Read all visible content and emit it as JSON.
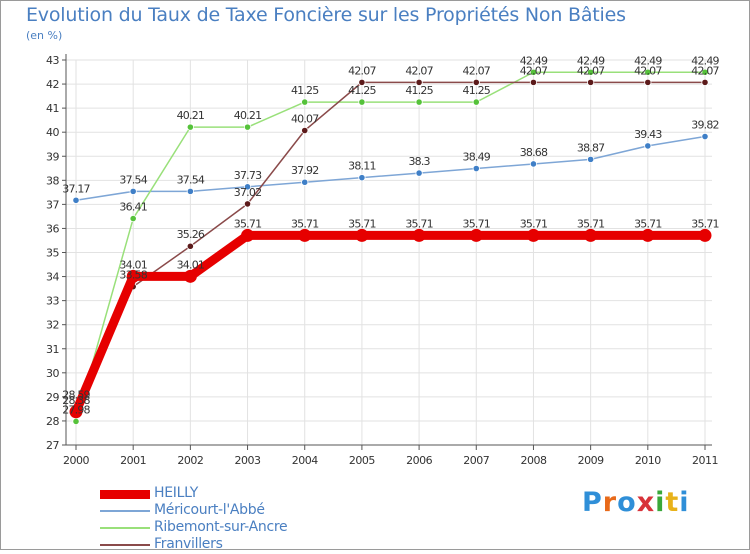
{
  "title": "Evolution du Taux de Taxe Foncière sur les Propriétés Non Bâties",
  "unit": "(en %)",
  "brand": "Proxiti",
  "brand_colors": [
    "#2f8fd8",
    "#e86a1a",
    "#2f8fd8",
    "#d8333a",
    "#3aa83a",
    "#e8b21a",
    "#2f8fd8"
  ],
  "chart_data": {
    "type": "line",
    "title": "Evolution du Taux de Taxe Foncière sur les Propriétés Non Bâties",
    "ylabel": "(en %)",
    "xlabel": "",
    "categories": [
      "2000",
      "2001",
      "2002",
      "2003",
      "2004",
      "2005",
      "2006",
      "2007",
      "2008",
      "2009",
      "2010",
      "2011"
    ],
    "ylim": [
      27,
      43
    ],
    "yticks": [
      27,
      28,
      29,
      30,
      31,
      32,
      33,
      34,
      35,
      36,
      37,
      38,
      39,
      40,
      41,
      42,
      43
    ],
    "grid": true,
    "legend_position": "bottom-left",
    "series": [
      {
        "name": "HEILLY",
        "color": "#e60000",
        "marker": "#e60000",
        "width": 9,
        "values": [
          28.38,
          34.01,
          34.01,
          35.71,
          35.71,
          35.71,
          35.71,
          35.71,
          35.71,
          35.71,
          35.71,
          35.71
        ],
        "labels": [
          "28.38",
          "34.01",
          "34.01",
          "35.71",
          "35.71",
          "35.71",
          "35.71",
          "35.71",
          "35.71",
          "35.71",
          "35.71",
          "35.71"
        ]
      },
      {
        "name": "Méricourt-l'Abbé",
        "color": "#7ea6d6",
        "marker": "#3f7fc7",
        "width": 1.5,
        "values": [
          37.17,
          37.54,
          37.54,
          37.73,
          37.92,
          38.11,
          38.3,
          38.49,
          38.68,
          38.87,
          39.43,
          39.82
        ],
        "labels": [
          "37.17",
          "37.54",
          "37.54",
          "37.73",
          "37.92",
          "38.11",
          "38.3",
          "38.49",
          "38.68",
          "38.87",
          "39.43",
          "39.82"
        ]
      },
      {
        "name": "Ribemont-sur-Ancre",
        "color": "#99e07a",
        "marker": "#55c23a",
        "width": 1.5,
        "values": [
          27.98,
          36.41,
          40.21,
          40.21,
          41.25,
          41.25,
          41.25,
          41.25,
          42.49,
          42.49,
          42.49,
          42.49
        ],
        "labels": [
          "27.98",
          "36.41",
          "40.21",
          "40.21",
          "41.25",
          "41.25",
          "41.25",
          "41.25",
          "42.49",
          "42.49",
          "42.49",
          "42.49"
        ]
      },
      {
        "name": "Franvillers",
        "color": "#8a4a4a",
        "marker": "#5c1a1a",
        "width": 1.5,
        "values": [
          28.59,
          33.58,
          35.26,
          37.02,
          40.07,
          42.07,
          42.07,
          42.07,
          42.07,
          42.07,
          42.07,
          42.07
        ],
        "labels": [
          "28.59",
          "33.58",
          "35.26",
          "37.02",
          "40.07",
          "42.07",
          "42.07",
          "42.07",
          "42.07",
          "42.07",
          "42.07",
          "42.07"
        ]
      }
    ]
  }
}
